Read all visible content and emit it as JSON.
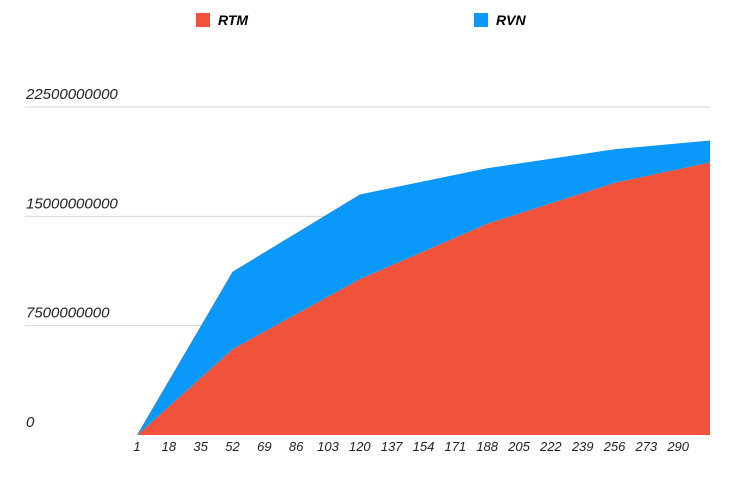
{
  "chart_data": {
    "type": "area",
    "stacked": true,
    "grid": true,
    "legend_position": "top",
    "title": "",
    "xlabel": "",
    "ylabel": "",
    "ylim": [
      0,
      22500000000
    ],
    "y_ticks": [
      "0",
      "7500000000",
      "15000000000",
      "22500000000"
    ],
    "x_ticks": [
      "1",
      "18",
      "35",
      "52",
      "69",
      "86",
      "103",
      "120",
      "137",
      "154",
      "171",
      "188",
      "205",
      "222",
      "239",
      "256",
      "273",
      "290"
    ],
    "x": [
      1,
      52,
      120,
      188,
      256,
      307
    ],
    "series": [
      {
        "name": "RTM",
        "color": "#f0523a",
        "values": [
          0,
          5900000000,
          10700000000,
          14500000000,
          17300000000,
          18700000000
        ]
      },
      {
        "name": "RVN",
        "color": "#0a98fa",
        "values": [
          0,
          5300000000,
          5800000000,
          3800000000,
          2300000000,
          1500000000
        ]
      }
    ]
  }
}
